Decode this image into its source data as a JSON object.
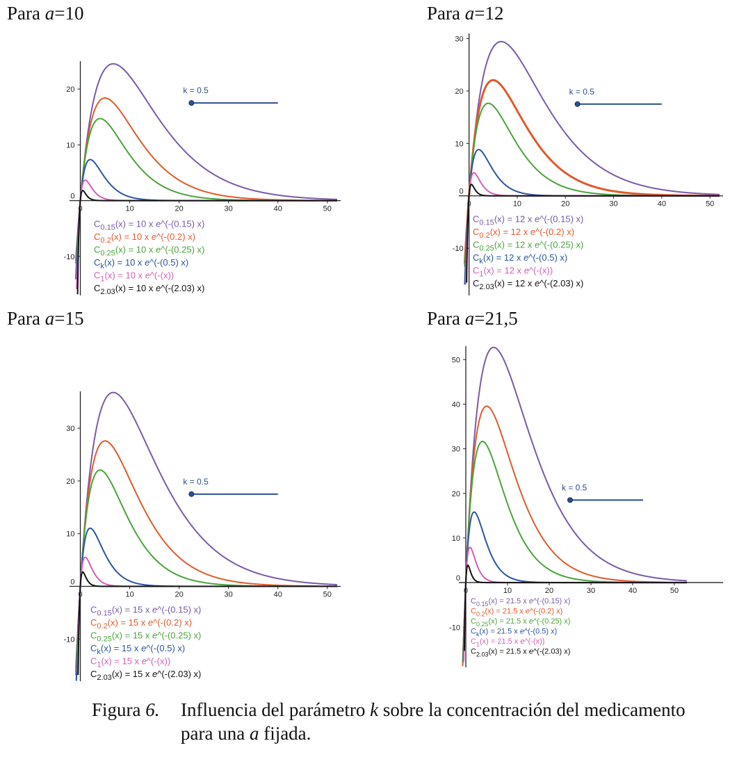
{
  "titles": [
    {
      "prefix": "Para ",
      "var": "a",
      "eq": "=",
      "value": "10"
    },
    {
      "prefix": "Para ",
      "var": "a",
      "eq": "=",
      "value": "12"
    },
    {
      "prefix": "Para ",
      "var": "a",
      "eq": "=",
      "value": "15"
    },
    {
      "prefix": "Para ",
      "var": "a",
      "eq": "=",
      "value": "21,5"
    }
  ],
  "caption": {
    "label_prefix": "Figura ",
    "label_number": "6.",
    "text_1": "Influencia del parámetro ",
    "k_var": "k",
    "text_2": " sobre la concentración del medicamento para una ",
    "a_var": "a",
    "text_3": " fijada."
  },
  "colors": {
    "c015": "#7a5aa8",
    "c02": "#e05a2b",
    "c025": "#4aa33c",
    "ck": "#2c55a0",
    "c1": "#d061b5",
    "c203": "#111111",
    "slider": "#2c4f8e"
  },
  "chart_data": [
    {
      "type": "line",
      "title": "Para a = 10",
      "a": 10,
      "xlim": [
        -5,
        52
      ],
      "ylim": [
        -17,
        25
      ],
      "xticks": [
        0,
        10,
        20,
        30,
        40,
        50
      ],
      "yticks": [
        -10,
        0,
        10,
        20
      ],
      "slider_label": "k = 0.5",
      "slider_value": 0.5,
      "series": [
        {
          "name": "C_{0.15}",
          "k": 0.15,
          "color_key": "c015",
          "label": "C",
          "sub": "0.15",
          "expr_prefix": "(x) = 10 x ",
          "expr_e": "e",
          "expr_suffix": "^(-(0.15) x)"
        },
        {
          "name": "C_{0.2}",
          "k": 0.2,
          "color_key": "c02",
          "label": "C",
          "sub": "0.2",
          "expr_prefix": "(x) = 10 x ",
          "expr_e": "e",
          "expr_suffix": "^(-(0.2) x)"
        },
        {
          "name": "C_{0.25}",
          "k": 0.25,
          "color_key": "c025",
          "label": "C",
          "sub": "0.25",
          "expr_prefix": "(x) = 10 x ",
          "expr_e": "e",
          "expr_suffix": "^(-(0.25) x)"
        },
        {
          "name": "C_k",
          "k": 0.5,
          "color_key": "ck",
          "label": "C",
          "sub": "k",
          "expr_prefix": "(x) = 10 x ",
          "expr_e": "e",
          "expr_suffix": "^(-(0.5) x)"
        },
        {
          "name": "C_1",
          "k": 1,
          "color_key": "c1",
          "label": "C",
          "sub": "1",
          "expr_prefix": "(x) = 10 x ",
          "expr_e": "e",
          "expr_suffix": "^(-(x))"
        },
        {
          "name": "C_{2.03}",
          "k": 2.03,
          "color_key": "c203",
          "label": "C",
          "sub": "2.03",
          "expr_prefix": "(x) = 10 x ",
          "expr_e": "e",
          "expr_suffix": "^(-(2.03) x)"
        }
      ]
    },
    {
      "type": "line",
      "title": "Para a = 12",
      "a": 12,
      "xlim": [
        -5,
        52
      ],
      "ylim": [
        -19,
        31
      ],
      "xticks": [
        0,
        10,
        20,
        30,
        40,
        50
      ],
      "yticks": [
        -10,
        0,
        10,
        20,
        30
      ],
      "slider_label": "k = 0.5",
      "slider_value": 0.5,
      "series": [
        {
          "name": "C_{0.15}",
          "k": 0.15,
          "color_key": "c015",
          "label": "C",
          "sub": "0.15",
          "expr_prefix": "(x) = 12 x ",
          "expr_e": "e",
          "expr_suffix": "^(-(0.15) x)"
        },
        {
          "name": "C_{0.2}",
          "k": 0.2,
          "color_key": "c02",
          "label": "C",
          "sub": "0.2",
          "expr_prefix": "(x) = 12 x ",
          "expr_e": "e",
          "expr_suffix": "^(-(0.2) x)"
        },
        {
          "name": "C_{0.25}",
          "k": 0.25,
          "color_key": "c025",
          "label": "C",
          "sub": "0.25",
          "expr_prefix": "(x) = 12 x ",
          "expr_e": "e",
          "expr_suffix": "^(-(0.25) x)"
        },
        {
          "name": "C_k",
          "k": 0.5,
          "color_key": "ck",
          "label": "C",
          "sub": "k",
          "expr_prefix": "(x) = 12 x ",
          "expr_e": "e",
          "expr_suffix": "^(-(0.5) x)"
        },
        {
          "name": "C_1",
          "k": 1,
          "color_key": "c1",
          "label": "C",
          "sub": "1",
          "expr_prefix": "(x) = 12 x ",
          "expr_e": "e",
          "expr_suffix": "^(-(x))"
        },
        {
          "name": "C_{2.03}",
          "k": 2.03,
          "color_key": "c203",
          "label": "C",
          "sub": "2.03",
          "expr_prefix": "(x) = 12 x ",
          "expr_e": "e",
          "expr_suffix": "^(-(2.03) x)"
        }
      ]
    },
    {
      "type": "line",
      "title": "Para a = 15",
      "a": 15,
      "xlim": [
        -5,
        52
      ],
      "ylim": [
        -18,
        37
      ],
      "xticks": [
        0,
        10,
        20,
        30,
        40,
        50
      ],
      "yticks": [
        -10,
        0,
        10,
        20,
        30
      ],
      "slider_label": "k = 0.5",
      "slider_value": 0.5,
      "series": [
        {
          "name": "C_{0.15}",
          "k": 0.15,
          "color_key": "c015",
          "label": "C",
          "sub": "0.15",
          "expr_prefix": "(x) = 15 x ",
          "expr_e": "e",
          "expr_suffix": "^(-(0.15) x)"
        },
        {
          "name": "C_{0.2}",
          "k": 0.2,
          "color_key": "c02",
          "label": "C",
          "sub": "0.2",
          "expr_prefix": "(x) = 15 x ",
          "expr_e": "e",
          "expr_suffix": "^(-(0.2) x)"
        },
        {
          "name": "C_{0.25}",
          "k": 0.25,
          "color_key": "c025",
          "label": "C",
          "sub": "0.25",
          "expr_prefix": "(x) = 15 x ",
          "expr_e": "e",
          "expr_suffix": "^(-(0.25) x)"
        },
        {
          "name": "C_k",
          "k": 0.5,
          "color_key": "ck",
          "label": "C",
          "sub": "k",
          "expr_prefix": "(x) = 15 x ",
          "expr_e": "e",
          "expr_suffix": "^(-(0.5) x)"
        },
        {
          "name": "C_1",
          "k": 1,
          "color_key": "c1",
          "label": "C",
          "sub": "1",
          "expr_prefix": "(x) = 15 x ",
          "expr_e": "e",
          "expr_suffix": "^(-(x))"
        },
        {
          "name": "C_{2.03}",
          "k": 2.03,
          "color_key": "c203",
          "label": "C",
          "sub": "2.03",
          "expr_prefix": "(x) = 15 x ",
          "expr_e": "e",
          "expr_suffix": "^(-(2.03) x)"
        }
      ]
    },
    {
      "type": "line",
      "title": "Para a = 21,5",
      "a": 21.5,
      "xlim": [
        -5,
        53
      ],
      "ylim": [
        -19,
        53
      ],
      "xticks": [
        0,
        10,
        20,
        30,
        40,
        50
      ],
      "yticks": [
        -10,
        0,
        10,
        20,
        30,
        40,
        50
      ],
      "slider_label": "k = 0.5",
      "slider_value": 0.5,
      "series": [
        {
          "name": "C_{0.15}",
          "k": 0.15,
          "color_key": "c015",
          "label": "C",
          "sub": "0.15",
          "expr_prefix": "(x) = 21.5 x ",
          "expr_e": "e",
          "expr_suffix": "^(-(0.15) x)"
        },
        {
          "name": "C_{0.2}",
          "k": 0.2,
          "color_key": "c02",
          "label": "C",
          "sub": "0.2",
          "expr_prefix": "(x) = 21.5 x ",
          "expr_e": "e",
          "expr_suffix": "^(-(0.2) x)"
        },
        {
          "name": "C_{0.25}",
          "k": 0.25,
          "color_key": "c025",
          "label": "C",
          "sub": "0.25",
          "expr_prefix": "(x) = 21.5 x ",
          "expr_e": "e",
          "expr_suffix": "^(-(0.25) x)"
        },
        {
          "name": "C_k",
          "k": 0.5,
          "color_key": "ck",
          "label": "C",
          "sub": "k",
          "expr_prefix": "(x) = 21.5 x ",
          "expr_e": "e",
          "expr_suffix": "^(-(0.5) x)"
        },
        {
          "name": "C_1",
          "k": 1,
          "color_key": "c1",
          "label": "C",
          "sub": "1",
          "expr_prefix": "(x) = 21.5 x ",
          "expr_e": "e",
          "expr_suffix": "^(-(x))"
        },
        {
          "name": "C_{2.03}",
          "k": 2.03,
          "color_key": "c203",
          "label": "C",
          "sub": "2.03",
          "expr_prefix": "(x) = 21.5 x ",
          "expr_e": "e",
          "expr_suffix": "^(-(2.03) x)"
        }
      ]
    }
  ]
}
